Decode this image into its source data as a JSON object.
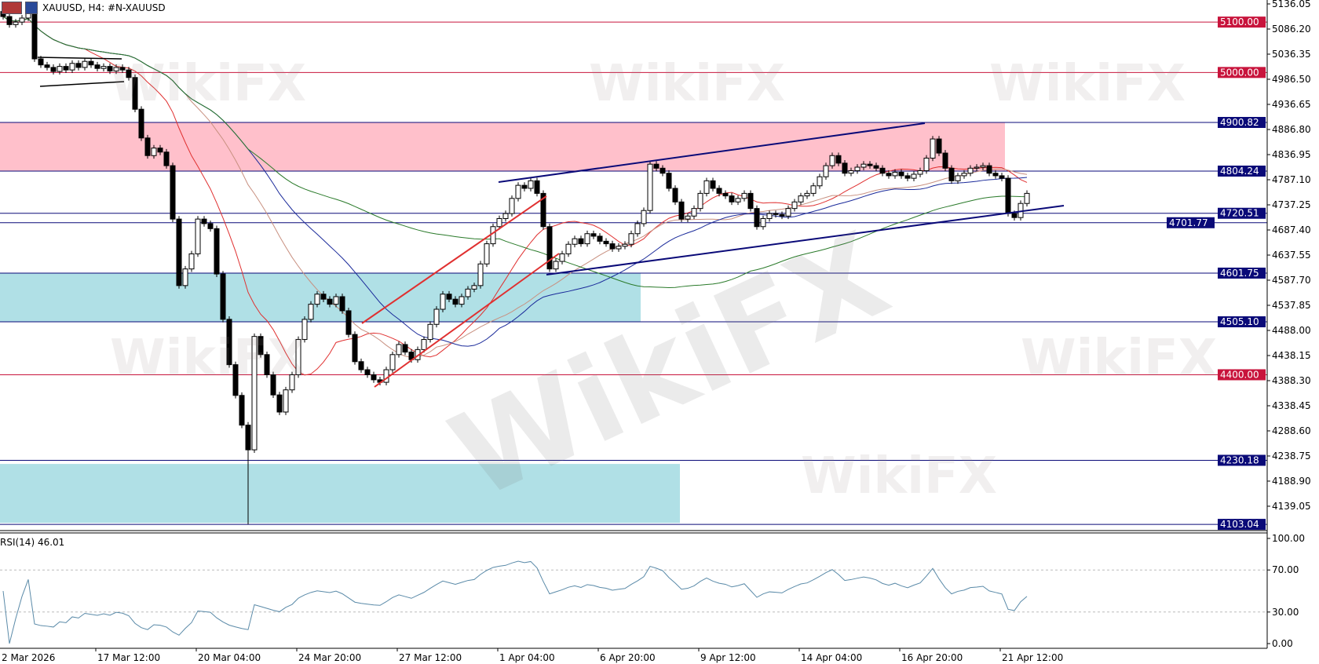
{
  "header": {
    "symbol_title": "XAUUSD, H4:  #N-XAUUSD"
  },
  "watermark": "WikiFX",
  "colors": {
    "support_resistance": "#0a0a78",
    "round_levels": "#c8143c",
    "supply_zone": "#ffc0cb",
    "demand_zone": "#b0e0e6",
    "ma_fast": "#e03030",
    "ma_mid": "#1a2a9a",
    "ma_slow": "#2a7a2a",
    "ma_alt": "#c89080",
    "rsi_line": "#5a8aa8"
  },
  "chart_data": {
    "type": "candlestick",
    "timeframe": "H4",
    "ylim": [
      4089.0,
      5145.0
    ],
    "y_ticks": [
      "5136.05",
      "5086.20",
      "5036.35",
      "4986.50",
      "4936.65",
      "4886.80",
      "4836.95",
      "4787.10",
      "4737.25",
      "4687.40",
      "4637.55",
      "4587.70",
      "4537.85",
      "4488.00",
      "4438.15",
      "4388.30",
      "4338.45",
      "4288.60",
      "4238.75",
      "4188.90",
      "4139.05"
    ],
    "x_ticks": [
      "2 Mar 2026",
      "17 Mar 12:00",
      "20 Mar 04:00",
      "24 Mar 20:00",
      "27 Mar 12:00",
      "1 Apr 04:00",
      "6 Apr 20:00",
      "9 Apr 12:00",
      "14 Apr 04:00",
      "16 Apr 20:00",
      "21 Apr 12:00"
    ],
    "closes": [
      5111,
      5095,
      5100,
      5108,
      5120,
      5027,
      5015,
      5010,
      5002,
      5012,
      5005,
      5018,
      5010,
      5022,
      5015,
      5008,
      5012,
      5003,
      5010,
      5005,
      4990,
      4927,
      4870,
      4835,
      4850,
      4842,
      4815,
      4709,
      4577,
      4610,
      4640,
      4709,
      4700,
      4690,
      4600,
      4510,
      4420,
      4359,
      4300,
      4251,
      4476,
      4440,
      4400,
      4360,
      4326,
      4370,
      4400,
      4470,
      4510,
      4540,
      4560,
      4550,
      4540,
      4555,
      4527,
      4480,
      4426,
      4410,
      4400,
      4390,
      4385,
      4410,
      4440,
      4460,
      4445,
      4430,
      4450,
      4470,
      4500,
      4530,
      4560,
      4550,
      4540,
      4555,
      4570,
      4577,
      4620,
      4660,
      4694,
      4710,
      4720,
      4750,
      4776,
      4770,
      4785,
      4760,
      4694,
      4610,
      4625,
      4640,
      4659,
      4670,
      4660,
      4680,
      4675,
      4665,
      4660,
      4650,
      4655,
      4659,
      4680,
      4700,
      4726,
      4818,
      4810,
      4800,
      4770,
      4743,
      4709,
      4715,
      4730,
      4760,
      4785,
      4770,
      4760,
      4755,
      4743,
      4750,
      4760,
      4730,
      4694,
      4710,
      4720,
      4718,
      4715,
      4730,
      4743,
      4755,
      4760,
      4775,
      4793,
      4815,
      4835,
      4820,
      4800,
      4805,
      4812,
      4818,
      4815,
      4810,
      4800,
      4795,
      4802,
      4795,
      4790,
      4798,
      4805,
      4830,
      4868,
      4840,
      4810,
      4785,
      4795,
      4800,
      4810,
      4812,
      4815,
      4800,
      4795,
      4790,
      4720,
      4712,
      4740,
      4760
    ],
    "period_low": 4103.04,
    "levels": [
      {
        "price": 5100.0,
        "label": "5100.00",
        "kind": "round"
      },
      {
        "price": 5000.0,
        "label": "5000.00",
        "kind": "round"
      },
      {
        "price": 4900.82,
        "label": "4900.82",
        "kind": "sr"
      },
      {
        "price": 4804.24,
        "label": "4804.24",
        "kind": "sr"
      },
      {
        "price": 4720.51,
        "label": "4720.51",
        "kind": "sr"
      },
      {
        "price": 4701.77,
        "label": "4701.77",
        "kind": "sr"
      },
      {
        "price": 4601.75,
        "label": "4601.75",
        "kind": "sr"
      },
      {
        "price": 4505.1,
        "label": "4505.10",
        "kind": "sr"
      },
      {
        "price": 4400.0,
        "label": "4400.00",
        "kind": "round"
      },
      {
        "price": 4230.18,
        "label": "4230.18",
        "kind": "sr"
      },
      {
        "price": 4103.04,
        "label": "4103.04",
        "kind": "sr"
      }
    ],
    "zones": [
      {
        "kind": "supply",
        "from": 4804.24,
        "to": 4900.82
      },
      {
        "kind": "demand",
        "from": 4505.1,
        "to": 4601.75
      },
      {
        "kind": "demand",
        "from": 4106.0,
        "to": 4223.0
      }
    ],
    "indicator": {
      "name": "RSI(14)",
      "value": "46.01",
      "label": "RSI(14) 46.01",
      "ylim": [
        0,
        100
      ],
      "levels": [
        30,
        70
      ],
      "y_ticks": [
        "100.00",
        "70.00",
        "30.00",
        "0.00"
      ]
    }
  }
}
